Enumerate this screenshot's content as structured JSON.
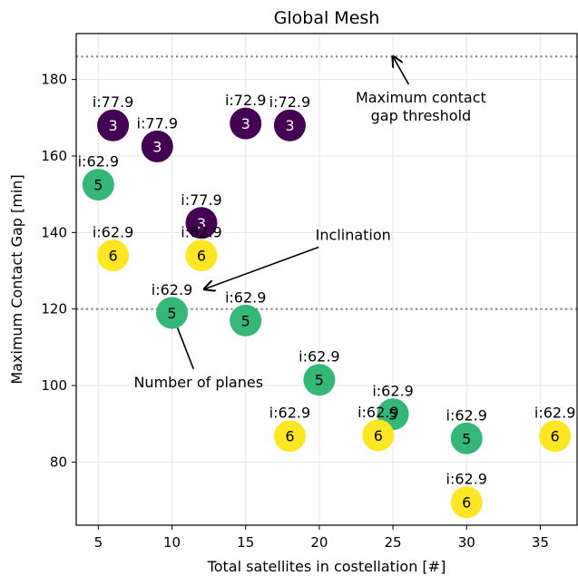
{
  "chart_data": {
    "type": "scatter",
    "title": "Global Mesh",
    "xlabel": "Total satellites in costellation [#]",
    "ylabel": "Maximum Contact Gap [min]",
    "xlim": [
      3.5,
      37.5
    ],
    "ylim": [
      63.5,
      192
    ],
    "xticks": [
      5,
      10,
      15,
      20,
      25,
      30,
      35
    ],
    "yticks": [
      80,
      100,
      120,
      140,
      160,
      180
    ],
    "grid": true,
    "reference_lines": [
      186,
      120
    ],
    "plane_colors": {
      "3": "#440154",
      "5": "#35b779",
      "6": "#fde725"
    },
    "points": [
      {
        "x": 6,
        "y": 168,
        "planes": "3",
        "inclination": "i:77.9"
      },
      {
        "x": 9,
        "y": 162.5,
        "planes": "3",
        "inclination": "i:77.9"
      },
      {
        "x": 15,
        "y": 168.5,
        "planes": "3",
        "inclination": "i:72.9"
      },
      {
        "x": 18,
        "y": 168,
        "planes": "3",
        "inclination": "i:72.9"
      },
      {
        "x": 12,
        "y": 142.5,
        "planes": "3",
        "inclination": "i:77.9"
      },
      {
        "x": 5,
        "y": 152.5,
        "planes": "5",
        "inclination": "i:62.9"
      },
      {
        "x": 6,
        "y": 134,
        "planes": "6",
        "inclination": "i:62.9"
      },
      {
        "x": 12,
        "y": 134,
        "planes": "6",
        "inclination": "i:62.9"
      },
      {
        "x": 10,
        "y": 119,
        "planes": "5",
        "inclination": "i:62.9"
      },
      {
        "x": 15,
        "y": 117,
        "planes": "5",
        "inclination": "i:62.9"
      },
      {
        "x": 20,
        "y": 101.5,
        "planes": "5",
        "inclination": "i:62.9"
      },
      {
        "x": 25,
        "y": 92.5,
        "planes": "5",
        "inclination": "i:62.9"
      },
      {
        "x": 18,
        "y": 86.8,
        "planes": "6",
        "inclination": "i:62.9"
      },
      {
        "x": 24,
        "y": 87,
        "planes": "6",
        "inclination": "i:62.9"
      },
      {
        "x": 30,
        "y": 86.2,
        "planes": "5",
        "inclination": "i:62.9"
      },
      {
        "x": 36,
        "y": 86.8,
        "planes": "6",
        "inclination": "i:62.9"
      },
      {
        "x": 30,
        "y": 69.5,
        "planes": "6",
        "inclination": "i:62.9"
      }
    ],
    "annotations": [
      {
        "lines": [
          "Maximum contact",
          "gap threshold"
        ],
        "text_x": 26.9,
        "text_y": 173,
        "arrow_to": [
          25.0,
          186.0
        ]
      },
      {
        "lines": [
          "Inclination"
        ],
        "text_x": 22.3,
        "text_y": 139.5,
        "arrow_to": [
          12.2,
          125.2
        ]
      },
      {
        "lines": [
          "Number of planes"
        ],
        "text_x": 11.8,
        "text_y": 101,
        "arrow_to": [
          10.1,
          117.8
        ]
      }
    ]
  }
}
